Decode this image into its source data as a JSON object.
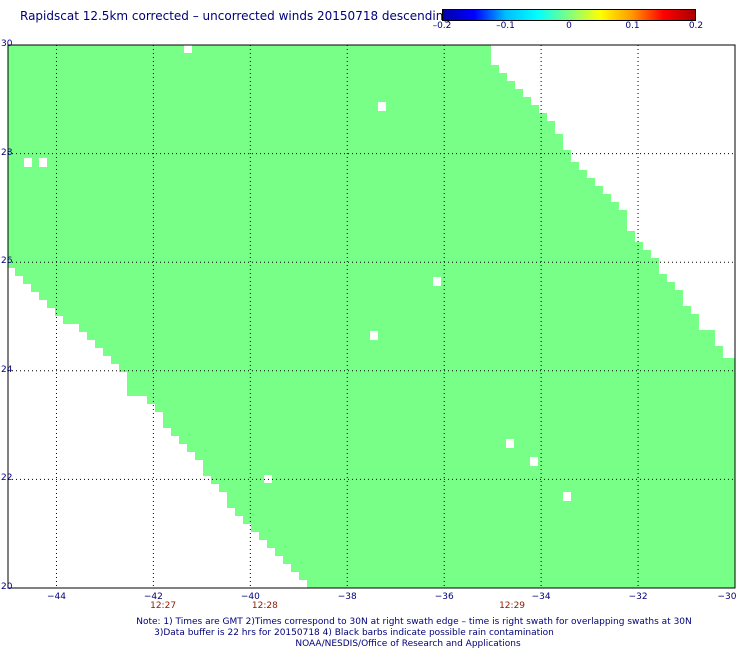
{
  "title": "Rapidscat 12.5km corrected – uncorrected winds 20150718 descending",
  "colorbar": {
    "labels": [
      "–0.2",
      "–0.1",
      "0",
      "0.1",
      "0.2"
    ],
    "stops": [
      "#0000aa",
      "#0000ff",
      "#00bfff",
      "#00ffff",
      "#80ff80",
      "#ffff00",
      "#ff9900",
      "#ff0000",
      "#aa0000"
    ]
  },
  "map": {
    "lat_range": [
      20,
      30
    ],
    "lon_range": [
      -45,
      -30
    ],
    "lat_labels": [
      "30",
      "28",
      "26",
      "24",
      "22",
      "20"
    ],
    "lon_labels": [
      "−44",
      "−42",
      "−40",
      "−38",
      "−36",
      "−34",
      "−32",
      "−30"
    ],
    "swath_color": "#77ff88",
    "time_labels": [
      {
        "text": "12:27",
        "lon": -41.8
      },
      {
        "text": "12:28",
        "lon": -39.7
      },
      {
        "text": "12:29",
        "lon": -34.6
      }
    ]
  },
  "notes": [
    "Note: 1) Times are GMT 2)Times correspond to 30N at right swath edge – time is right swath for overlapping swaths at 30N",
    "3)Data buffer is 22 hrs for 20150718 4) Black barbs indicate possible rain contamination",
    "NOAA/NESDIS/Office of Research and Applications"
  ]
}
